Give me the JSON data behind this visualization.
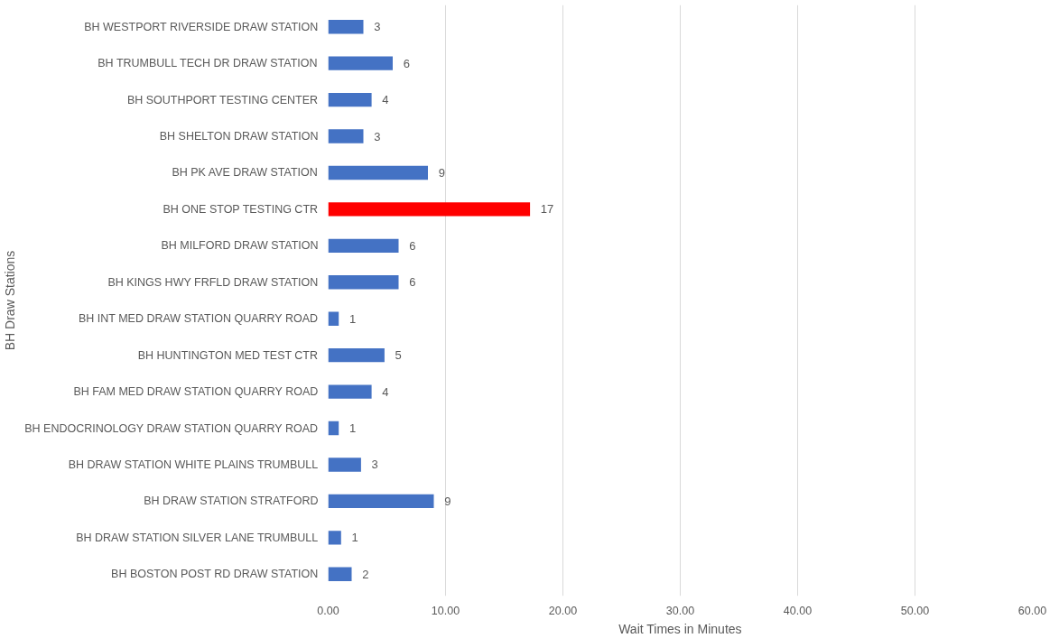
{
  "chart_data": {
    "type": "bar",
    "orientation": "horizontal",
    "xlabel": "Wait Times in Minutes",
    "ylabel": "BH Draw Stations",
    "categories": [
      "BH WESTPORT RIVERSIDE DRAW STATION",
      "BH TRUMBULL TECH DR DRAW STATION",
      "BH SOUTHPORT TESTING CENTER",
      "BH SHELTON DRAW STATION",
      "BH PK AVE DRAW STATION",
      "BH ONE STOP TESTING CTR",
      "BH MILFORD DRAW STATION",
      "BH KINGS HWY FRFLD DRAW STATION",
      "BH INT MED DRAW STATION QUARRY ROAD",
      "BH HUNTINGTON MED TEST CTR",
      "BH FAM MED DRAW STATION QUARRY ROAD",
      "BH ENDOCRINOLOGY DRAW STATION QUARRY ROAD",
      "BH DRAW STATION WHITE PLAINS TRUMBULL",
      "BH DRAW STATION STRATFORD",
      "BH DRAW STATION SILVER LANE TRUMBULL",
      "BH BOSTON POST RD DRAW STATION"
    ],
    "values": [
      3.0,
      5.5,
      3.7,
      3.0,
      8.5,
      17.2,
      6.0,
      6.0,
      0.9,
      4.8,
      3.7,
      0.9,
      2.8,
      9.0,
      1.1,
      2.0
    ],
    "value_labels": [
      "3",
      "6",
      "4",
      "3",
      "9",
      "17",
      "6",
      "6",
      "1",
      "5",
      "4",
      "1",
      "3",
      "9",
      "1",
      "2"
    ],
    "colors": [
      "#4472c4",
      "#4472c4",
      "#4472c4",
      "#4472c4",
      "#4472c4",
      "#ff0000",
      "#4472c4",
      "#4472c4",
      "#4472c4",
      "#4472c4",
      "#4472c4",
      "#4472c4",
      "#4472c4",
      "#4472c4",
      "#4472c4",
      "#4472c4"
    ],
    "xlim": [
      0,
      60
    ],
    "xticks": [
      {
        "value": 0,
        "label": "0.00"
      },
      {
        "value": 10,
        "label": "10.00"
      },
      {
        "value": 20,
        "label": "20.00"
      },
      {
        "value": 30,
        "label": "30.00"
      },
      {
        "value": 40,
        "label": "40.00"
      },
      {
        "value": 50,
        "label": "50.00"
      },
      {
        "value": 60,
        "label": "60.00"
      }
    ],
    "grid": "x"
  }
}
